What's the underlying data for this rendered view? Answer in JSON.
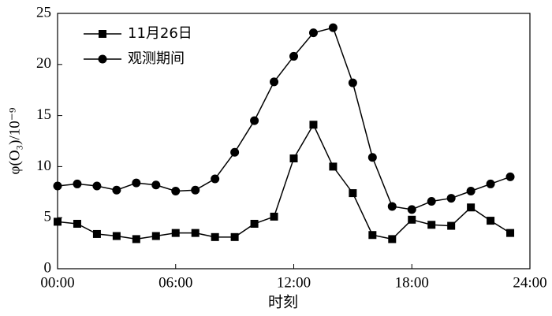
{
  "chart_data": {
    "type": "line",
    "x_label": "时刻",
    "y_label": "φ(O₃)/10⁻⁹",
    "x": [
      0,
      1,
      2,
      3,
      4,
      5,
      6,
      7,
      8,
      9,
      10,
      11,
      12,
      13,
      14,
      15,
      16,
      17,
      18,
      19,
      20,
      21,
      22,
      23
    ],
    "xlim": [
      0,
      24
    ],
    "xticks": [
      {
        "value": 0,
        "label": "00:00"
      },
      {
        "value": 6,
        "label": "06:00"
      },
      {
        "value": 12,
        "label": "12:00"
      },
      {
        "value": 18,
        "label": "18:00"
      },
      {
        "value": 24,
        "label": "24:00"
      }
    ],
    "ylim": [
      0,
      25
    ],
    "yticks": [
      0,
      5,
      10,
      15,
      20,
      25
    ],
    "legend": "upper-left",
    "series": [
      {
        "name": "11月26日",
        "color": "#000000",
        "marker": "square",
        "values": [
          4.6,
          4.4,
          3.4,
          3.2,
          2.9,
          3.2,
          3.5,
          3.5,
          3.1,
          3.1,
          4.4,
          5.1,
          10.8,
          14.1,
          10.0,
          7.4,
          3.3,
          2.9,
          4.8,
          4.3,
          4.2,
          6.0,
          4.7,
          3.5
        ]
      },
      {
        "name": "观测期间",
        "color": "#000000",
        "marker": "circle",
        "values": [
          8.1,
          8.3,
          8.1,
          7.7,
          8.4,
          8.2,
          7.6,
          7.7,
          8.8,
          11.4,
          14.5,
          18.3,
          20.8,
          23.1,
          23.6,
          18.2,
          10.9,
          6.1,
          5.8,
          6.6,
          6.9,
          7.6,
          8.3,
          9.0
        ]
      }
    ]
  }
}
